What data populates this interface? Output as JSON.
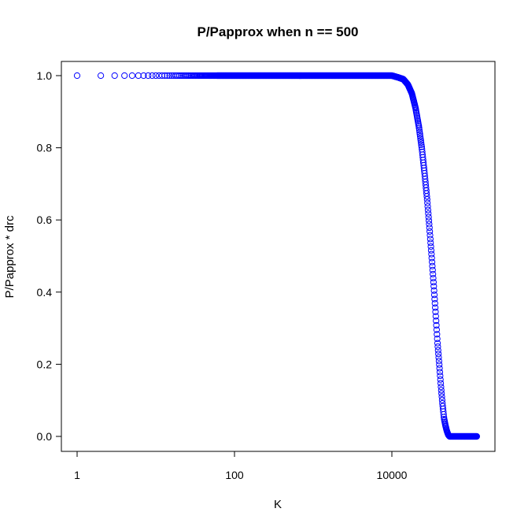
{
  "chart_data": {
    "type": "scatter",
    "title": "P/Papprox when n == 500",
    "xlabel": "K",
    "ylabel": "P/Papprox * drc",
    "x_scale": "log",
    "xlim": [
      1,
      120000
    ],
    "ylim": [
      0,
      1
    ],
    "x_ticks": [
      1,
      100,
      10000
    ],
    "x_tick_labels": [
      "1",
      "100",
      "10000"
    ],
    "y_ticks": [
      0,
      0.2,
      0.4,
      0.6,
      0.8,
      1
    ],
    "y_tick_labels": [
      "0.0",
      "0.2",
      "0.4",
      "0.6",
      "0.8",
      "1.0"
    ],
    "grid": false,
    "marker": "open-circle",
    "series_color": "#0000ff",
    "x": [
      1,
      2,
      3,
      4,
      5,
      6,
      7,
      8,
      9,
      10,
      11,
      12,
      13,
      14,
      15,
      16,
      18,
      20,
      25,
      30,
      40,
      60,
      100,
      200,
      500,
      1000,
      2000,
      5000,
      8000,
      10000,
      12000,
      14000,
      16000,
      18000,
      20000,
      22000,
      24000,
      26000,
      28000,
      30000,
      32000,
      34000,
      36000,
      38000,
      40000,
      42000,
      44000,
      46000,
      48000,
      50000,
      52000,
      54000,
      56000,
      58000,
      60000,
      62000,
      64000,
      66000,
      68000,
      70000,
      75000,
      80000,
      90000,
      100000,
      110000,
      120000
    ],
    "y": [
      1,
      1,
      1,
      1,
      1,
      1,
      1,
      1,
      1,
      1,
      1,
      1,
      1,
      1,
      1,
      1,
      1,
      1,
      1,
      1,
      1,
      1,
      1,
      1,
      1,
      1,
      1,
      1,
      1,
      1,
      0.995,
      0.99,
      0.975,
      0.95,
      0.91,
      0.86,
      0.8,
      0.73,
      0.66,
      0.58,
      0.5,
      0.42,
      0.34,
      0.26,
      0.2,
      0.14,
      0.09,
      0.05,
      0.03,
      0.015,
      0.005,
      0,
      0,
      0,
      0,
      0,
      0,
      0,
      0,
      0,
      0,
      0,
      0,
      0,
      0,
      0
    ]
  }
}
